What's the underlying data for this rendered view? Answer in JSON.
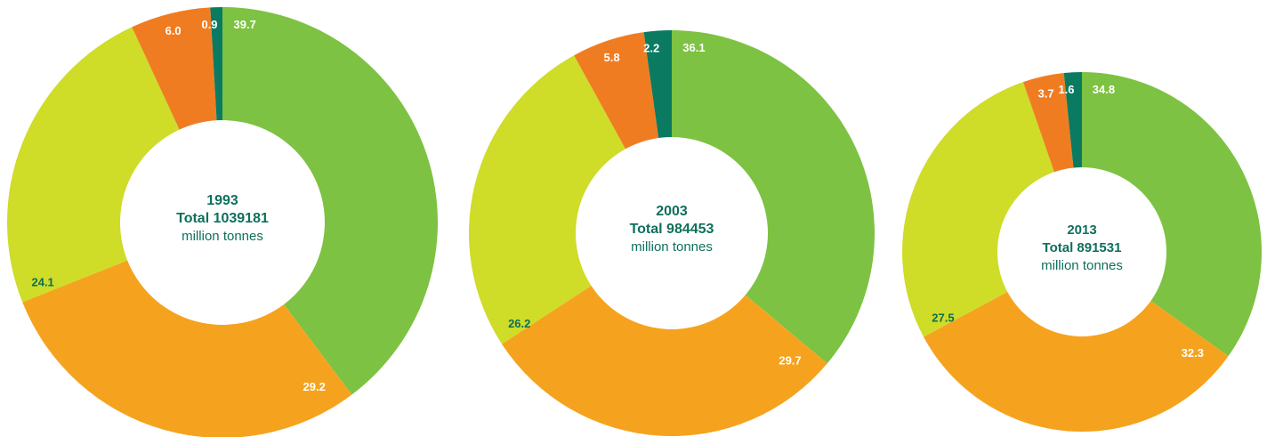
{
  "chart_data": [
    {
      "type": "pie",
      "year": "1993",
      "total_label": "Total 1039181",
      "unit": "million tonnes",
      "values": [
        39.7,
        29.2,
        24.1,
        6.0,
        0.9
      ],
      "labels": [
        "39.7",
        "29.2",
        "24.1",
        "6.0",
        "0.9"
      ],
      "colors": [
        "#7dc242",
        "#f5a31e",
        "#cfdc28",
        "#f07c22",
        "#0a7b61"
      ]
    },
    {
      "type": "pie",
      "year": "2003",
      "total_label": "Total 984453",
      "unit": "million tonnes",
      "values": [
        36.1,
        29.7,
        26.2,
        5.8,
        2.2
      ],
      "labels": [
        "36.1",
        "29.7",
        "26.2",
        "5.8",
        "2.2"
      ],
      "colors": [
        "#7dc242",
        "#f5a31e",
        "#cfdc28",
        "#f07c22",
        "#0a7b61"
      ]
    },
    {
      "type": "pie",
      "year": "2013",
      "total_label": "Total 891531",
      "unit": "million tonnes",
      "values": [
        34.8,
        32.3,
        27.5,
        3.7,
        1.6
      ],
      "labels": [
        "34.8",
        "32.3",
        "27.5",
        "3.7",
        "1.6"
      ],
      "colors": [
        "#7dc242",
        "#f5a31e",
        "#cfdc28",
        "#f07c22",
        "#0a7b61"
      ]
    }
  ]
}
